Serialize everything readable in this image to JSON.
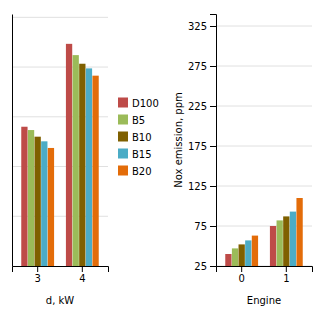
{
  "chart_data": [
    {
      "type": "bar",
      "categories": [
        "3",
        "4"
      ],
      "xlabel": "d, kW",
      "series": [
        {
          "name": "D100",
          "color": "#BE4B48",
          "values": [
            210,
            335
          ]
        },
        {
          "name": "B5",
          "color": "#9BBB59",
          "values": [
            205,
            318
          ]
        },
        {
          "name": "B10",
          "color": "#7F6000",
          "values": [
            195,
            305
          ]
        },
        {
          "name": "B15",
          "color": "#4BACC6",
          "values": [
            188,
            298
          ]
        },
        {
          "name": "B20",
          "color": "#E36C09",
          "values": [
            178,
            287
          ]
        }
      ],
      "ylim": [
        0,
        380
      ],
      "yticks": [
        75,
        150,
        225,
        300,
        375
      ],
      "grid": true,
      "tick_labels": "x",
      "legend": "right"
    },
    {
      "type": "bar",
      "categories": [
        "0",
        "1"
      ],
      "xlabel": "Engine",
      "ylabel": "Nox emission, ppm",
      "series": [
        {
          "name": "D100",
          "color": "#BE4B48",
          "values": [
            40,
            75
          ]
        },
        {
          "name": "B5",
          "color": "#9BBB59",
          "values": [
            47,
            82
          ]
        },
        {
          "name": "B10",
          "color": "#7F6000",
          "values": [
            52,
            87
          ]
        },
        {
          "name": "B15",
          "color": "#4BACC6",
          "values": [
            57,
            93
          ]
        },
        {
          "name": "B20",
          "color": "#E36C09",
          "values": [
            63,
            110
          ]
        }
      ],
      "ylim": [
        25,
        340
      ],
      "yticks": [
        25,
        75,
        125,
        175,
        225,
        275,
        325
      ],
      "grid": true
    }
  ]
}
